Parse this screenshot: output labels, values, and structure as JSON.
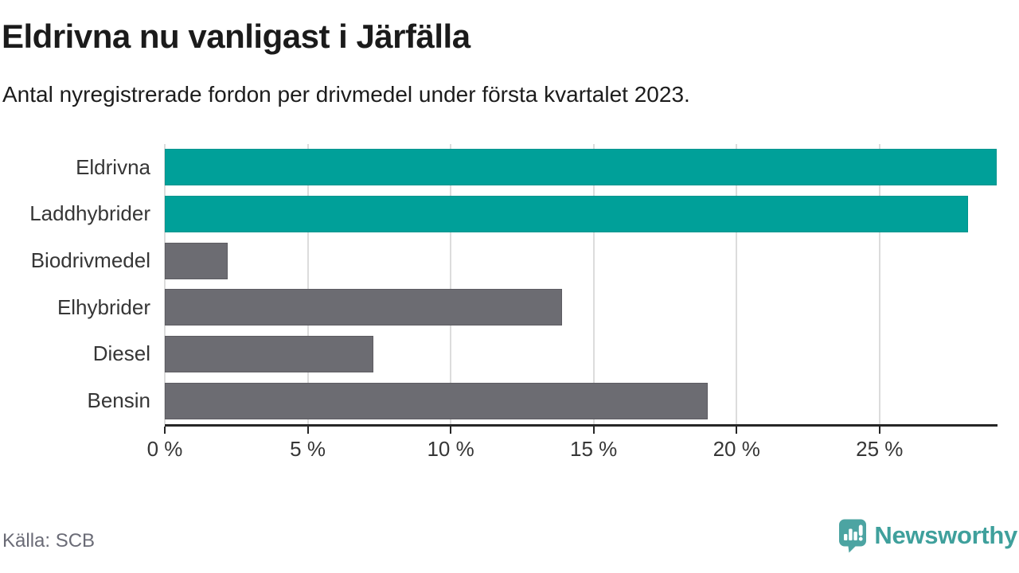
{
  "header": {
    "title": "Eldrivna nu vanligast i Järfälla",
    "subtitle": "Antal nyregistrerade fordon per drivmedel under första kvartalet 2023."
  },
  "chart_data": {
    "type": "bar",
    "orientation": "horizontal",
    "title": "Eldrivna nu vanligast i Järfälla",
    "subtitle": "Antal nyregistrerade fordon per drivmedel under första kvartalet 2023.",
    "categories": [
      "Eldrivna",
      "Laddhybrider",
      "Biodrivmedel",
      "Elhybrider",
      "Diesel",
      "Bensin"
    ],
    "values": [
      29.1,
      28.1,
      2.2,
      13.9,
      7.3,
      19.0
    ],
    "unit": "%",
    "xlim": [
      0,
      29.1
    ],
    "x_ticks": [
      0,
      5,
      10,
      15,
      20,
      25
    ],
    "x_tick_labels": [
      "0 %",
      "5 %",
      "10 %",
      "15 %",
      "20 %",
      "25 %"
    ],
    "grid": true,
    "legend": "none",
    "highlight_color": "#00a099",
    "default_color": "#6c6c72",
    "bar_colors": [
      "#00a099",
      "#00a099",
      "#6c6c72",
      "#6c6c72",
      "#6c6c72",
      "#6c6c72"
    ],
    "bar_border_colors": [
      "#00948e",
      "#00948e",
      "#5d5c62",
      "#5d5c62",
      "#5d5c62",
      "#5d5c62"
    ]
  },
  "footer": {
    "source": "Källa: SCB",
    "brand": "Newsworthy",
    "brand_color": "#3fa09c",
    "logo_icon_color": "#4ca4a2",
    "logo_icon": "bar-chart-speech-bubble-icon"
  }
}
